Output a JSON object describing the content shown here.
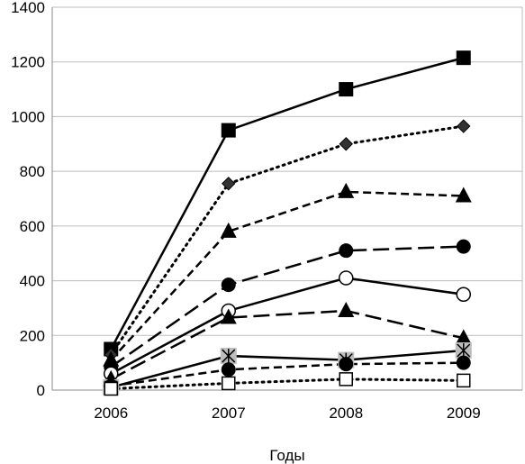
{
  "chart_data": {
    "type": "line",
    "title": "",
    "xlabel": "Годы",
    "ylabel": "",
    "categories": [
      "2006",
      "2007",
      "2008",
      "2009"
    ],
    "ylim": [
      0,
      1400
    ],
    "yticks": [
      0,
      200,
      400,
      600,
      800,
      1000,
      1200,
      1400
    ],
    "grid": "horizontal",
    "legend": "none",
    "series": [
      {
        "values": [
          150,
          950,
          1100,
          1215
        ],
        "marker": "square-filled",
        "line": "solid",
        "color": "#000000"
      },
      {
        "values": [
          130,
          755,
          900,
          965
        ],
        "marker": "diamond-filled",
        "line": "dotted",
        "color": "#000000"
      },
      {
        "values": [
          110,
          580,
          725,
          710
        ],
        "marker": "triangle-filled",
        "line": "dashed",
        "color": "#000000"
      },
      {
        "values": [
          85,
          385,
          510,
          525
        ],
        "marker": "circle-filled",
        "line": "long-dashed",
        "color": "#000000"
      },
      {
        "values": [
          60,
          290,
          410,
          350
        ],
        "marker": "circle-open",
        "line": "solid",
        "color": "#000000"
      },
      {
        "values": [
          40,
          265,
          290,
          190
        ],
        "marker": "triangle-filled",
        "line": "long-dashed",
        "color": "#000000"
      },
      {
        "values": [
          10,
          125,
          110,
          145
        ],
        "marker": "star-gray",
        "line": "solid",
        "color": "#000000"
      },
      {
        "values": [
          15,
          75,
          95,
          100
        ],
        "marker": "circle-filled",
        "line": "dashed",
        "color": "#000000"
      },
      {
        "values": [
          5,
          25,
          40,
          35
        ],
        "marker": "square-open",
        "line": "dotted",
        "color": "#000000"
      }
    ]
  }
}
